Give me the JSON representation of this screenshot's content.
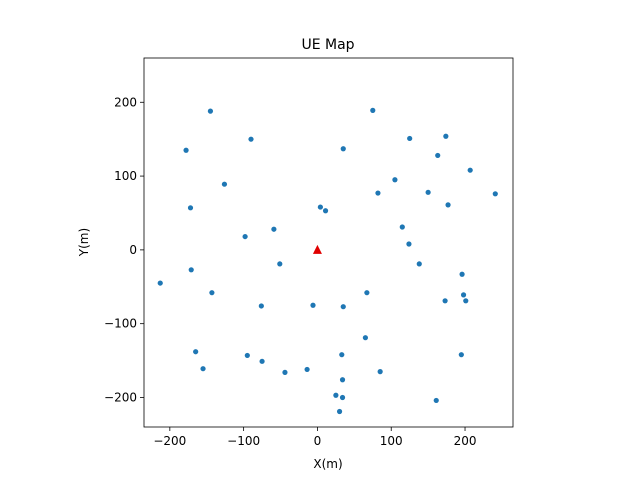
{
  "chart_data": {
    "type": "scatter",
    "title": "UE Map",
    "xlabel": "X(m)",
    "ylabel": "Y(m)",
    "xlim": [
      -235,
      265
    ],
    "ylim": [
      -240,
      260
    ],
    "xticks": [
      -200,
      -100,
      0,
      100,
      200
    ],
    "yticks": [
      -200,
      -100,
      0,
      100,
      200
    ],
    "grid": false,
    "legend": "none",
    "colors": {
      "points": "#1f77b4",
      "base_station": "#e00000"
    },
    "base_station": {
      "x": 0,
      "y": 0,
      "marker": "triangle"
    },
    "points": [
      {
        "x": -145,
        "y": 188
      },
      {
        "x": -178,
        "y": 135
      },
      {
        "x": -90,
        "y": 150
      },
      {
        "x": 75,
        "y": 189
      },
      {
        "x": 35,
        "y": 137
      },
      {
        "x": 125,
        "y": 151
      },
      {
        "x": 174,
        "y": 154
      },
      {
        "x": 163,
        "y": 128
      },
      {
        "x": 207,
        "y": 108
      },
      {
        "x": -126,
        "y": 89
      },
      {
        "x": -172,
        "y": 57
      },
      {
        "x": 105,
        "y": 95
      },
      {
        "x": 82,
        "y": 77
      },
      {
        "x": 150,
        "y": 78
      },
      {
        "x": 177,
        "y": 61
      },
      {
        "x": 241,
        "y": 76
      },
      {
        "x": 4,
        "y": 58
      },
      {
        "x": 11,
        "y": 53
      },
      {
        "x": -59,
        "y": 28
      },
      {
        "x": -98,
        "y": 18
      },
      {
        "x": 115,
        "y": 31
      },
      {
        "x": 124,
        "y": 8
      },
      {
        "x": -51,
        "y": -19
      },
      {
        "x": 138,
        "y": -19
      },
      {
        "x": -171,
        "y": -27
      },
      {
        "x": -213,
        "y": -45
      },
      {
        "x": -143,
        "y": -58
      },
      {
        "x": 67,
        "y": -58
      },
      {
        "x": 196,
        "y": -33
      },
      {
        "x": 198,
        "y": -61
      },
      {
        "x": 173,
        "y": -69
      },
      {
        "x": 201,
        "y": -69
      },
      {
        "x": -76,
        "y": -76
      },
      {
        "x": -6,
        "y": -75
      },
      {
        "x": 35,
        "y": -77
      },
      {
        "x": 65,
        "y": -119
      },
      {
        "x": -165,
        "y": -138
      },
      {
        "x": -95,
        "y": -143
      },
      {
        "x": -75,
        "y": -151
      },
      {
        "x": 33,
        "y": -142
      },
      {
        "x": 195,
        "y": -142
      },
      {
        "x": -155,
        "y": -161
      },
      {
        "x": -44,
        "y": -166
      },
      {
        "x": -14,
        "y": -162
      },
      {
        "x": 85,
        "y": -165
      },
      {
        "x": 34,
        "y": -176
      },
      {
        "x": 25,
        "y": -197
      },
      {
        "x": 34,
        "y": -200
      },
      {
        "x": 161,
        "y": -204
      },
      {
        "x": 30,
        "y": -219
      }
    ]
  }
}
